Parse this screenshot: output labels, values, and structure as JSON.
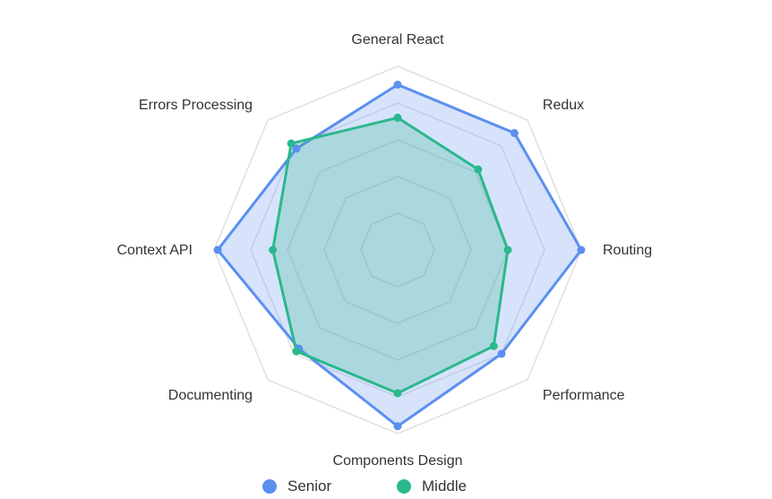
{
  "chart_data": {
    "type": "radar",
    "title": "",
    "axes": [
      "General React",
      "Redux",
      "Routing",
      "Performance",
      "Components Design",
      "Documenting",
      "Context API",
      "Errors Processing"
    ],
    "rmax": 5,
    "levels": 5,
    "grid": true,
    "legend_position": "bottom",
    "series": [
      {
        "name": "Senior",
        "color": "#5b8ff0",
        "values": [
          4.5,
          4.5,
          5,
          4,
          4.8,
          3.8,
          4.9,
          3.9
        ]
      },
      {
        "name": "Middle",
        "color": "#2bb88c",
        "values": [
          3.6,
          3.1,
          3,
          3.7,
          3.9,
          3.9,
          3.4,
          4.1
        ]
      }
    ]
  },
  "legend": {
    "items": [
      {
        "label": "Senior",
        "color": "#5b8ff0"
      },
      {
        "label": "Middle",
        "color": "#2bb88c"
      }
    ]
  }
}
